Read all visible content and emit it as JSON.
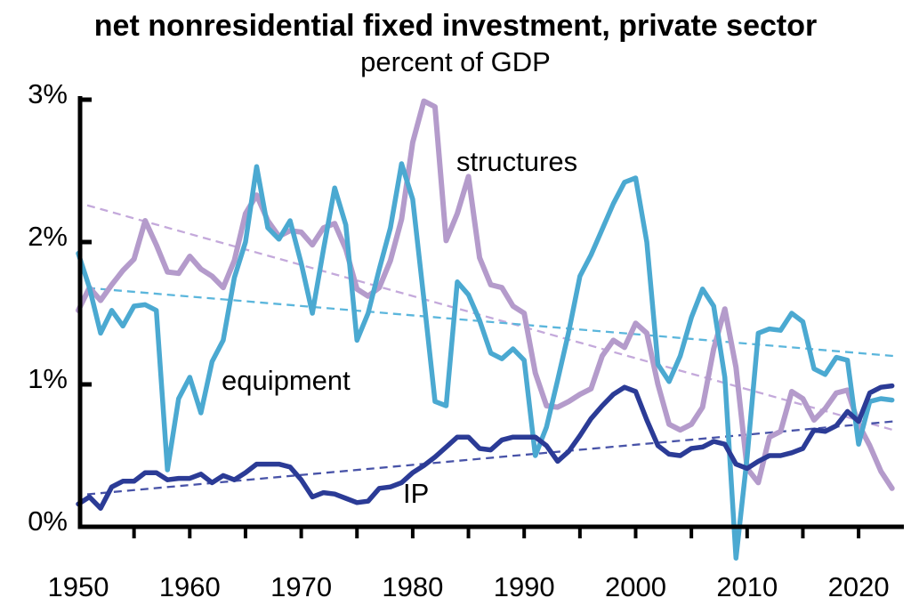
{
  "chart_data": {
    "type": "line",
    "title": "net nonresidential fixed investment, private sector",
    "subtitle": "percent of GDP",
    "xlabel": "",
    "ylabel": "percent of GDP",
    "ylim": [
      -0.3,
      3.0
    ],
    "xlim": [
      1950,
      2023
    ],
    "grid": false,
    "legend_position": "inline-annotations",
    "axis_color": "#000000",
    "years": [
      1950,
      1951,
      1952,
      1953,
      1954,
      1955,
      1956,
      1957,
      1958,
      1959,
      1960,
      1961,
      1962,
      1963,
      1964,
      1965,
      1966,
      1967,
      1968,
      1969,
      1970,
      1971,
      1972,
      1973,
      1974,
      1975,
      1976,
      1977,
      1978,
      1979,
      1980,
      1981,
      1982,
      1983,
      1984,
      1985,
      1986,
      1987,
      1988,
      1989,
      1990,
      1991,
      1992,
      1993,
      1994,
      1995,
      1996,
      1997,
      1998,
      1999,
      2000,
      2001,
      2002,
      2003,
      2004,
      2005,
      2006,
      2007,
      2008,
      2009,
      2010,
      2011,
      2012,
      2013,
      2014,
      2015,
      2016,
      2017,
      2018,
      2019,
      2020,
      2021,
      2022,
      2023
    ],
    "series": [
      {
        "name": "structures",
        "color": "#B49BCB",
        "stroke_width": 6,
        "values": [
          1.52,
          1.68,
          1.59,
          1.7,
          1.8,
          1.88,
          2.15,
          1.98,
          1.79,
          1.78,
          1.9,
          1.81,
          1.76,
          1.68,
          1.87,
          2.2,
          2.33,
          2.15,
          2.04,
          2.08,
          2.07,
          1.98,
          2.1,
          2.13,
          1.95,
          1.67,
          1.62,
          1.68,
          1.87,
          2.16,
          2.7,
          2.99,
          2.95,
          2.01,
          2.2,
          2.46,
          1.89,
          1.7,
          1.68,
          1.55,
          1.5,
          1.08,
          0.85,
          0.84,
          0.88,
          0.93,
          0.97,
          1.2,
          1.31,
          1.26,
          1.43,
          1.36,
          1.0,
          0.72,
          0.68,
          0.72,
          0.84,
          1.25,
          1.53,
          1.12,
          0.41,
          0.31,
          0.63,
          0.67,
          0.95,
          0.9,
          0.75,
          0.83,
          0.94,
          0.96,
          0.72,
          0.57,
          0.39,
          0.27
        ]
      },
      {
        "name": "equipment",
        "color": "#4BA9D1",
        "stroke_width": 5.5,
        "values": [
          1.92,
          1.68,
          1.36,
          1.52,
          1.41,
          1.55,
          1.56,
          1.52,
          0.4,
          0.9,
          1.05,
          0.8,
          1.16,
          1.31,
          1.75,
          2.0,
          2.53,
          2.1,
          2.02,
          2.15,
          1.85,
          1.5,
          1.95,
          2.38,
          2.12,
          1.31,
          1.5,
          1.81,
          2.1,
          2.55,
          2.3,
          1.6,
          0.88,
          0.85,
          1.72,
          1.63,
          1.45,
          1.22,
          1.18,
          1.25,
          1.17,
          0.5,
          0.7,
          1.03,
          1.37,
          1.76,
          1.91,
          2.09,
          2.27,
          2.42,
          2.45,
          2.0,
          1.14,
          1.02,
          1.2,
          1.47,
          1.67,
          1.55,
          1.05,
          -0.22,
          0.49,
          1.36,
          1.39,
          1.38,
          1.5,
          1.44,
          1.11,
          1.07,
          1.19,
          1.17,
          0.58,
          0.88,
          0.9,
          0.89
        ]
      },
      {
        "name": "IP",
        "color": "#2B3B96",
        "stroke_width": 5.5,
        "values": [
          0.16,
          0.21,
          0.13,
          0.28,
          0.32,
          0.32,
          0.38,
          0.38,
          0.33,
          0.34,
          0.34,
          0.37,
          0.31,
          0.36,
          0.33,
          0.38,
          0.44,
          0.44,
          0.44,
          0.42,
          0.33,
          0.21,
          0.24,
          0.23,
          0.2,
          0.17,
          0.18,
          0.27,
          0.28,
          0.31,
          0.38,
          0.43,
          0.49,
          0.56,
          0.63,
          0.63,
          0.55,
          0.54,
          0.61,
          0.63,
          0.63,
          0.63,
          0.57,
          0.46,
          0.53,
          0.64,
          0.76,
          0.85,
          0.93,
          0.98,
          0.95,
          0.75,
          0.57,
          0.51,
          0.5,
          0.55,
          0.56,
          0.6,
          0.58,
          0.44,
          0.41,
          0.46,
          0.5,
          0.5,
          0.52,
          0.55,
          0.68,
          0.67,
          0.71,
          0.81,
          0.74,
          0.94,
          0.98,
          0.99
        ]
      }
    ],
    "trendlines": [
      {
        "name": "structures-trend",
        "color": "#C4A9DB",
        "style": "dashed",
        "start_year": 1950,
        "start_value": 2.28,
        "end_year": 2023,
        "end_value": 0.68
      },
      {
        "name": "equipment-trend",
        "color": "#5BB6DC",
        "style": "dashed",
        "start_year": 1950,
        "start_value": 1.7,
        "end_year": 2023,
        "end_value": 1.2
      },
      {
        "name": "ip-trend",
        "color": "#4853A8",
        "style": "dashed",
        "start_year": 1950,
        "start_value": 0.25,
        "end_year": 2023,
        "end_value": 0.74
      }
    ],
    "yticks": [
      {
        "label": "0%",
        "value": 0
      },
      {
        "label": "1%",
        "value": 1
      },
      {
        "label": "2%",
        "value": 2
      },
      {
        "label": "3%",
        "value": 3
      }
    ],
    "xticks_labeled": [
      1950,
      1960,
      1970,
      1980,
      1990,
      2000,
      2010,
      2020
    ],
    "xticks_minor": [
      1955,
      1960,
      1965,
      1970,
      1975,
      1980,
      1985,
      1990,
      1995,
      2000,
      2005,
      2010,
      2015,
      2020
    ],
    "series_labels": {
      "structures": "structures",
      "equipment": "equipment",
      "ip": "IP"
    }
  }
}
